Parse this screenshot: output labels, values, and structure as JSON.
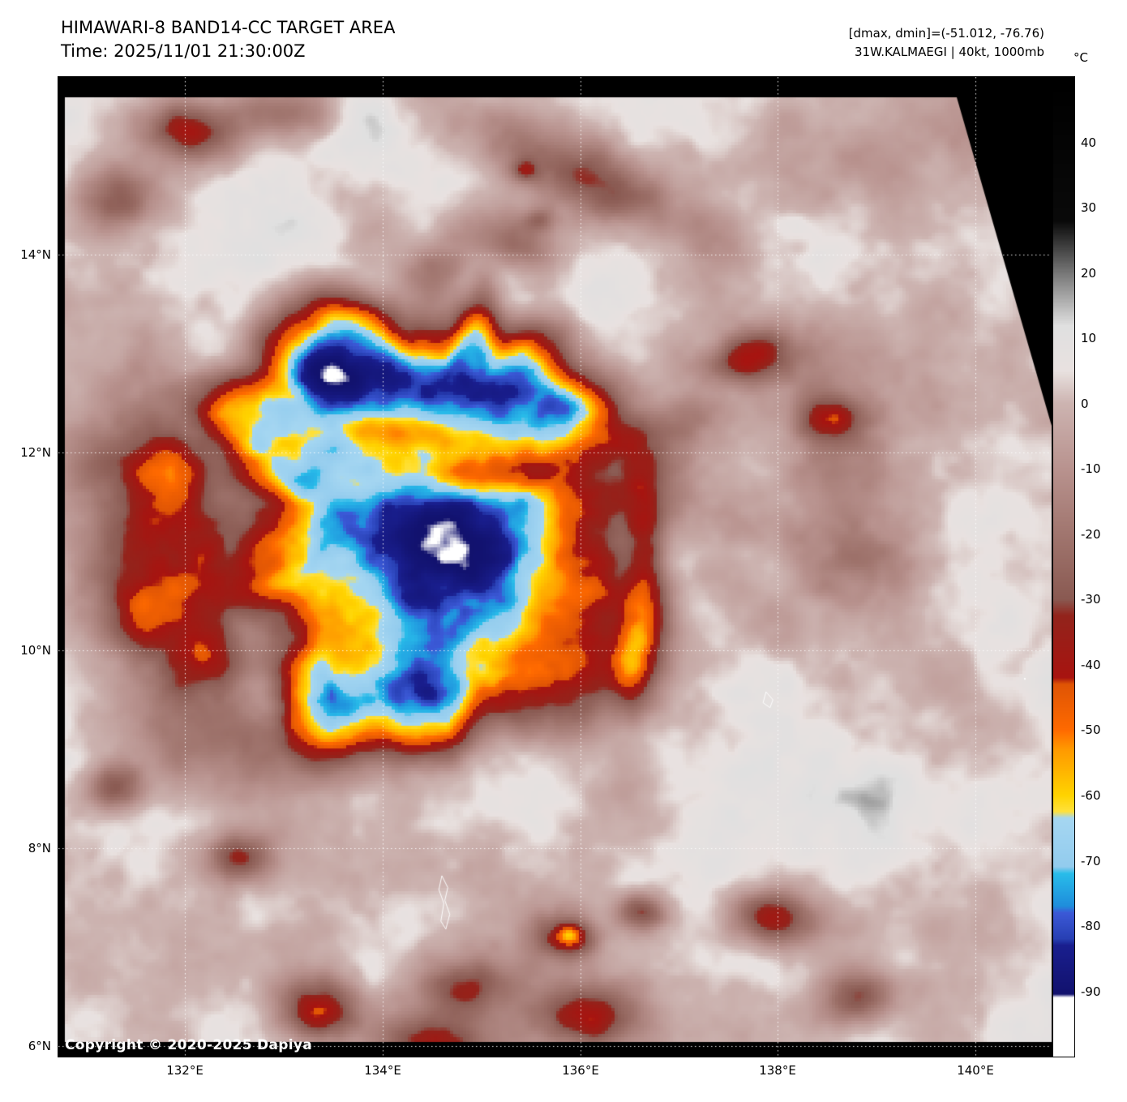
{
  "header": {
    "title_line1": "HIMAWARI-8 BAND14-CC TARGET AREA",
    "title_line2": "Time: 2025/11/01 21:30:00Z",
    "info_line1": "[dmax, dmin]=(-51.012, -76.76)",
    "info_line2": "31W.KALMAEGI | 40kt, 1000mb"
  },
  "map": {
    "copyright": "Copyright © 2020-2025 Dapiya",
    "x_tick_labels": [
      "132°E",
      "134°E",
      "136°E",
      "138°E",
      "140°E"
    ],
    "y_tick_labels": [
      "14°N",
      "12°N",
      "10°N",
      "8°N",
      "6°N"
    ]
  },
  "colorbar": {
    "unit": "°C",
    "tick_labels": [
      "40",
      "30",
      "20",
      "10",
      "0",
      "-10",
      "-20",
      "-30",
      "-40",
      "-50",
      "-60",
      "-70",
      "-80",
      "-90"
    ],
    "scale_top_c": 50,
    "scale_bottom_c": -100,
    "palette": [
      [
        50,
        "#000000"
      ],
      [
        28,
        "#0a0a0a"
      ],
      [
        20,
        "#787878"
      ],
      [
        12,
        "#e0e0e0"
      ],
      [
        5,
        "#e9e2e0"
      ],
      [
        0,
        "#cdb4b1"
      ],
      [
        -10,
        "#b9938f"
      ],
      [
        -20,
        "#a1766f"
      ],
      [
        -30,
        "#8a5a52"
      ],
      [
        -32.5,
        "#93241c"
      ],
      [
        -42,
        "#a81410"
      ],
      [
        -43,
        "#e05505"
      ],
      [
        -50,
        "#ff6a00"
      ],
      [
        -53,
        "#ff9a00"
      ],
      [
        -60,
        "#ffd400"
      ],
      [
        -62.5,
        "#ffe23c"
      ],
      [
        -63.5,
        "#a6d7f2"
      ],
      [
        -71,
        "#93ccee"
      ],
      [
        -72,
        "#29bdea"
      ],
      [
        -77,
        "#1f8edc"
      ],
      [
        -78,
        "#3c5ad8"
      ],
      [
        -82,
        "#2840b4"
      ],
      [
        -83,
        "#1a1f8f"
      ],
      [
        -90.5,
        "#12126e"
      ],
      [
        -91,
        "#ffffff"
      ],
      [
        -100,
        "#ffffff"
      ]
    ]
  }
}
